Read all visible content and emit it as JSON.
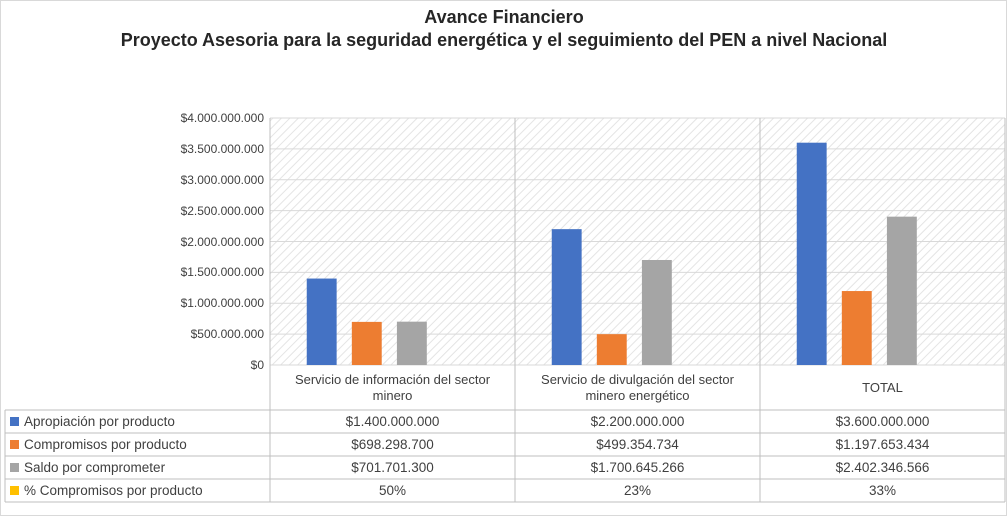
{
  "chart_data": {
    "type": "bar",
    "title": "Avance Financiero",
    "subtitle": "Proyecto Asesoria para la seguridad energética y el seguimiento del PEN a nivel Nacional",
    "categories": [
      "Servicio de información del sector minero",
      "Servicio de divulgación del sector minero energético",
      "TOTAL"
    ],
    "series": [
      {
        "name": "Apropiación por producto",
        "color": "#4472c4",
        "values": [
          1400000000,
          2200000000,
          3600000000
        ],
        "value_labels": [
          "$1.400.000.000",
          "$2.200.000.000",
          "$3.600.000.000"
        ]
      },
      {
        "name": "Compromisos por producto",
        "color": "#ed7d31",
        "values": [
          698298700,
          499354734,
          1197653434
        ],
        "value_labels": [
          "$698.298.700",
          "$499.354.734",
          "$1.197.653.434"
        ]
      },
      {
        "name": "Saldo por comprometer",
        "color": "#a5a5a5",
        "values": [
          701701300,
          1700645266,
          2402346566
        ],
        "value_labels": [
          "$701.701.300",
          "$1.700.645.266",
          "$2.402.346.566"
        ]
      },
      {
        "name": "% Compromisos por producto",
        "color": "#ffc000",
        "values": [
          50,
          23,
          33
        ],
        "value_labels": [
          "50%",
          "23%",
          "33%"
        ]
      }
    ],
    "ylim": [
      0,
      4000000000
    ],
    "yticks": [
      {
        "value": 0,
        "label": "$0"
      },
      {
        "value": 500000000,
        "label": "$500.000.000"
      },
      {
        "value": 1000000000,
        "label": "$1.000.000.000"
      },
      {
        "value": 1500000000,
        "label": "$1.500.000.000"
      },
      {
        "value": 2000000000,
        "label": "$2.000.000.000"
      },
      {
        "value": 2500000000,
        "label": "$2.500.000.000"
      },
      {
        "value": 3000000000,
        "label": "$3.000.000.000"
      },
      {
        "value": 3500000000,
        "label": "$3.500.000.000"
      },
      {
        "value": 4000000000,
        "label": "$4.000.000.000"
      }
    ],
    "grid": true
  }
}
